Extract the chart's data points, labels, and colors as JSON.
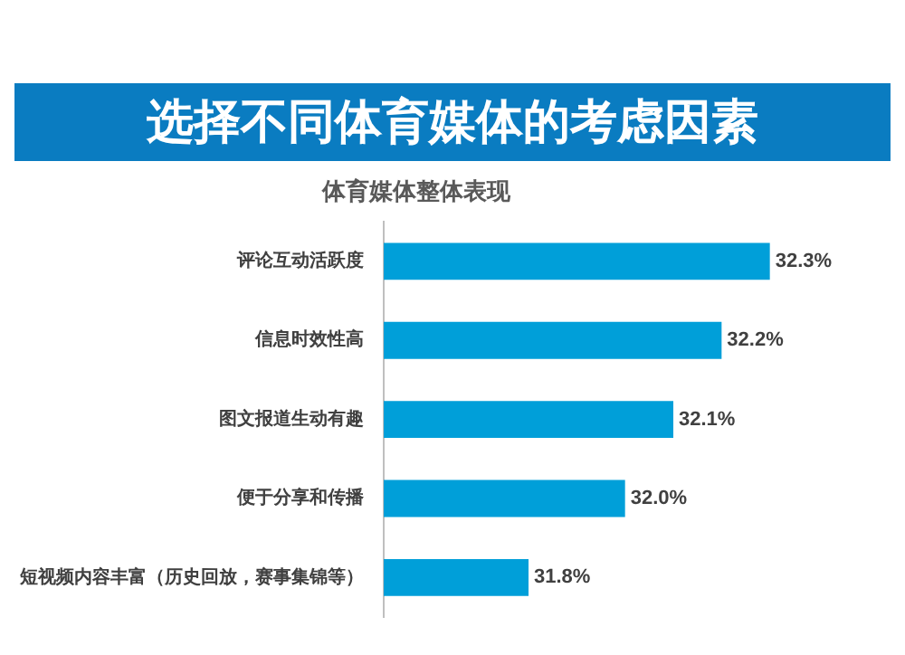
{
  "chart_data": {
    "type": "bar",
    "orientation": "horizontal",
    "title": "选择不同体育媒体的考虑因素",
    "subtitle": "体育媒体整体表现",
    "categories": [
      "评论互动活跃度",
      "信息时效性高",
      "图文报道生动有趣",
      "便于分享和传播",
      "短视频内容丰富（历史回放，赛事集锦等）"
    ],
    "values": [
      32.3,
      32.2,
      32.1,
      32.0,
      31.8
    ],
    "value_labels": [
      "32.3%",
      "32.2%",
      "32.1%",
      "32.0%",
      "31.8%"
    ],
    "color": "#009fd9",
    "tick_labels": "y",
    "legend": false
  }
}
